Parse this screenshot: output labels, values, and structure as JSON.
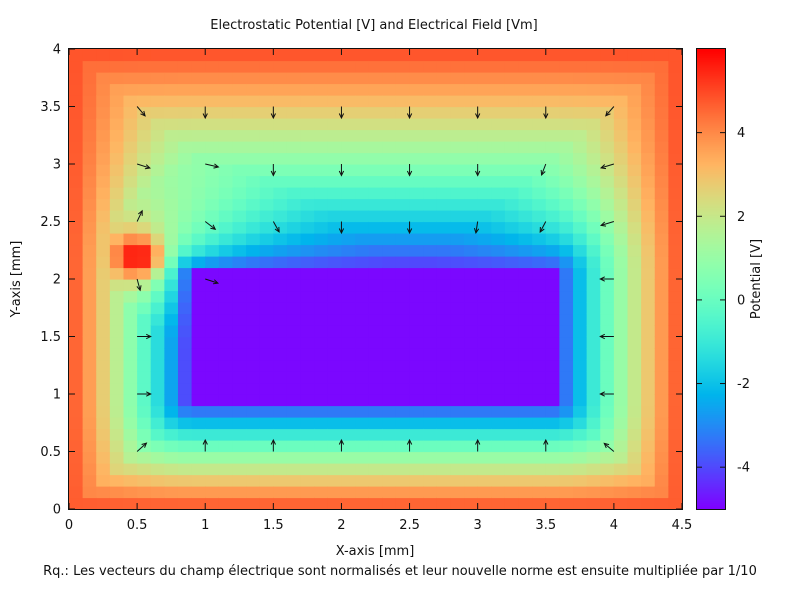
{
  "chart_data": {
    "type": "heatmap",
    "title": "Electrostatic Potential [V] and Electrical Field [Vm]",
    "xlabel": "X-axis [mm]",
    "ylabel": "Y-axis [mm]",
    "xlim": [
      0,
      4.5
    ],
    "ylim": [
      0,
      4
    ],
    "xticks": [
      "0",
      "0.5",
      "1",
      "1.5",
      "2",
      "2.5",
      "3",
      "3.5",
      "4",
      "4.5"
    ],
    "yticks": [
      "0",
      "0.5",
      "1",
      "1.5",
      "2",
      "2.5",
      "3",
      "3.5",
      "4"
    ],
    "grid": false,
    "cell_size_mm": 0.1,
    "colorbar": {
      "label": "Potential [V]",
      "range": [
        -5,
        6
      ],
      "ticks": [
        "-4",
        "-2",
        "0",
        "2",
        "4"
      ],
      "palette": "rainbow (violet to red)"
    },
    "field": {
      "potential_min": -4.9,
      "potential_max": 5.9,
      "boundary_potential": 5.0,
      "electrode_low": {
        "x_range": [
          0.9,
          3.55
        ],
        "y_range": [
          0.95,
          2.05
        ],
        "potential": -4.9
      },
      "electrode_high": {
        "center": [
          0.5,
          2.2
        ],
        "potential": 5.9
      }
    },
    "vectors": {
      "normalized": true,
      "scale": 0.1,
      "x": [
        0.5,
        1.0,
        1.5,
        2.0,
        2.5,
        3.0,
        3.5,
        4.0
      ],
      "y": [
        0.5,
        1.0,
        1.5,
        2.0,
        2.5,
        3.0,
        3.5
      ]
    }
  },
  "note": "Rq.: Les vecteurs du champ électrique sont normalisés et leur nouvelle norme est ensuite multipliée par 1/10"
}
